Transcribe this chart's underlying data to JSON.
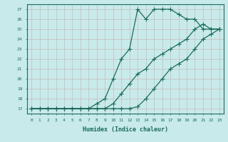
{
  "title": "",
  "xlabel": "Humidex (Indice chaleur)",
  "bg_color": "#c8eaea",
  "line_color": "#1a6b5a",
  "grid_color": "#c8a8a8",
  "xlim": [
    -0.5,
    23.5
  ],
  "ylim": [
    16.5,
    27.5
  ],
  "yticks": [
    17,
    18,
    19,
    20,
    21,
    22,
    23,
    24,
    25,
    26,
    27
  ],
  "xticks": [
    0,
    1,
    2,
    3,
    4,
    5,
    6,
    7,
    8,
    9,
    10,
    11,
    12,
    13,
    14,
    15,
    16,
    17,
    18,
    19,
    20,
    21,
    22,
    23
  ],
  "line1_x": [
    0,
    1,
    2,
    3,
    4,
    5,
    6,
    7,
    8,
    9,
    10,
    11,
    12,
    13,
    14,
    15,
    16,
    17,
    18,
    19,
    20,
    21,
    22,
    23
  ],
  "line1_y": [
    17,
    17,
    17,
    17,
    17,
    17,
    17,
    17,
    17,
    17,
    17,
    17,
    17,
    17.2,
    18,
    19,
    20,
    21,
    21.5,
    22,
    23,
    24,
    24.5,
    25
  ],
  "line2_x": [
    0,
    1,
    2,
    3,
    4,
    5,
    6,
    7,
    8,
    9,
    10,
    11,
    12,
    13,
    14,
    15,
    16,
    17,
    18,
    19,
    20,
    21,
    22,
    23
  ],
  "line2_y": [
    17,
    17,
    17,
    17,
    17,
    17,
    17,
    17,
    17,
    17,
    17.5,
    18.5,
    19.5,
    20.5,
    21,
    22,
    22.5,
    23,
    23.5,
    24,
    25,
    25.5,
    25,
    25
  ],
  "line3_x": [
    0,
    1,
    2,
    3,
    4,
    5,
    6,
    7,
    8,
    9,
    10,
    11,
    12,
    13,
    14,
    15,
    16,
    17,
    18,
    19,
    20,
    21,
    22,
    23
  ],
  "line3_y": [
    17,
    17,
    17,
    17,
    17,
    17,
    17,
    17,
    17.5,
    18,
    20,
    22,
    23,
    27,
    26,
    27,
    27,
    27,
    26.5,
    26,
    26,
    25,
    25,
    25
  ]
}
